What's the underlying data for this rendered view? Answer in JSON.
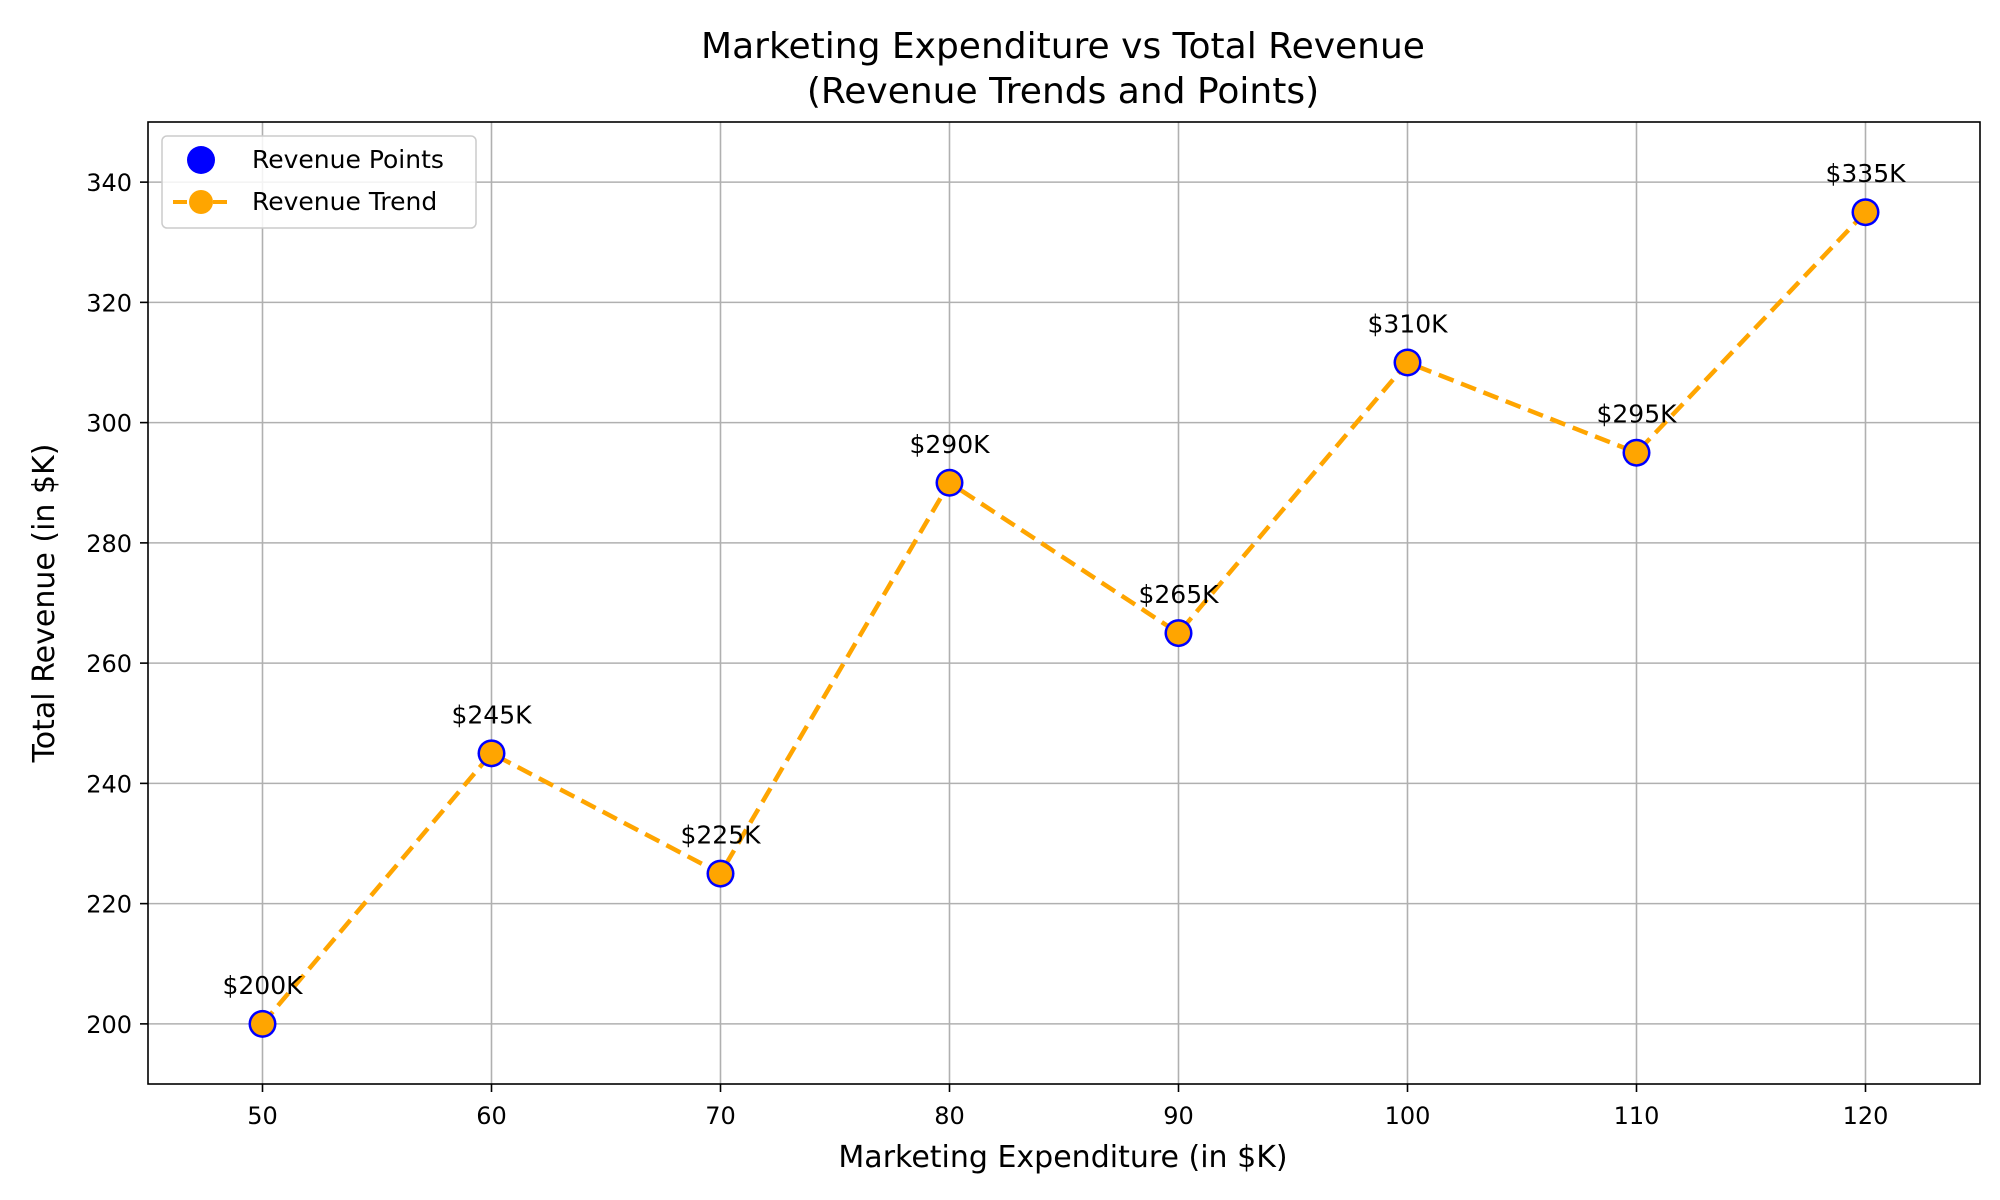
{
  "chart_data": {
    "type": "line",
    "title": "Marketing Expenditure vs Total Revenue",
    "subtitle": "(Revenue Trends and Points)",
    "xlabel": "Marketing Expenditure (in $K)",
    "ylabel": "Total Revenue (in $K)",
    "x": [
      50,
      60,
      70,
      80,
      90,
      100,
      110,
      120
    ],
    "series": [
      {
        "name": "Revenue Points",
        "kind": "scatter",
        "values": [
          200,
          245,
          225,
          290,
          265,
          310,
          295,
          335
        ],
        "color": "#0000ff"
      },
      {
        "name": "Revenue Trend",
        "kind": "line",
        "line_style": "dashed",
        "values": [
          200,
          245,
          225,
          290,
          265,
          310,
          295,
          335
        ],
        "color": "#ffa500"
      }
    ],
    "data_labels": [
      "$200K",
      "$245K",
      "$225K",
      "$290K",
      "$265K",
      "$310K",
      "$295K",
      "$335K"
    ],
    "xlim": [
      45,
      125
    ],
    "ylim": [
      190,
      350
    ],
    "x_ticks": [
      50,
      60,
      70,
      80,
      90,
      100,
      110,
      120
    ],
    "y_ticks": [
      200,
      220,
      240,
      260,
      280,
      300,
      320,
      340
    ],
    "grid": true,
    "legend_position": "top-left"
  }
}
